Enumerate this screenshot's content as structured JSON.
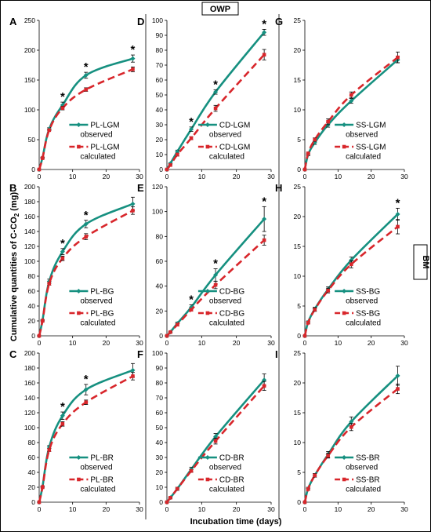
{
  "figure": {
    "top_tag": "OWP",
    "side_tag": "BM",
    "ylabel": "Cumulative quantities of C-CO",
    "ylabel_sub": "2",
    "ylabel_tail": " (mg)",
    "xlabel": "Incubation time (days)"
  },
  "colors": {
    "observed": "#169080",
    "calculated": "#d8262b"
  },
  "chart_data": [
    {
      "type": "line",
      "panel": "A",
      "ylim": [
        0,
        250
      ],
      "yticks": [
        0,
        50,
        100,
        150,
        200,
        250
      ],
      "xlim": [
        0,
        30
      ],
      "xticks": [
        0,
        10,
        20,
        30
      ],
      "legend": {
        "observed": [
          "PL-LGM",
          "observed"
        ],
        "calculated": [
          "PL-LGM",
          "calculated"
        ]
      },
      "series": [
        {
          "name": "PL-LGM observed",
          "x": [
            0,
            1,
            3,
            7,
            14,
            28
          ],
          "y": [
            0,
            20,
            68,
            108,
            158,
            186
          ],
          "err": [
            0,
            1,
            2,
            5,
            5,
            6
          ]
        },
        {
          "name": "PL-LGM calculated",
          "x": [
            0,
            1,
            3,
            7,
            14,
            28
          ],
          "y": [
            0,
            19,
            66,
            103,
            134,
            168
          ],
          "err": [
            0,
            1,
            1,
            3,
            3,
            4
          ]
        }
      ],
      "stars": [
        7,
        14,
        28
      ]
    },
    {
      "type": "line",
      "panel": "B",
      "ylim": [
        0,
        200
      ],
      "yticks": [
        0,
        20,
        40,
        60,
        80,
        100,
        120,
        140,
        160,
        180,
        200
      ],
      "xlim": [
        0,
        30
      ],
      "xticks": [
        0,
        10,
        20,
        30
      ],
      "legend": {
        "observed": [
          "PL-BG",
          "observed"
        ],
        "calculated": [
          "PL-BG",
          "calculated"
        ]
      },
      "series": [
        {
          "name": "PL-BG observed",
          "x": [
            0,
            1,
            3,
            7,
            14,
            28
          ],
          "y": [
            0,
            21,
            73,
            113,
            150,
            177
          ],
          "err": [
            0,
            1,
            3,
            4,
            5,
            9
          ]
        },
        {
          "name": "PL-BG calculated",
          "x": [
            0,
            1,
            3,
            7,
            14,
            28
          ],
          "y": [
            0,
            20,
            70,
            104,
            133,
            168
          ],
          "err": [
            0,
            1,
            2,
            3,
            4,
            5
          ]
        }
      ],
      "stars": [
        7,
        14
      ]
    },
    {
      "type": "line",
      "panel": "C",
      "ylim": [
        0,
        200
      ],
      "yticks": [
        0,
        20,
        40,
        60,
        80,
        100,
        120,
        140,
        160,
        180,
        200
      ],
      "xlim": [
        0,
        30
      ],
      "xticks": [
        0,
        10,
        20,
        30
      ],
      "legend": {
        "observed": [
          "PL-BR",
          "observed"
        ],
        "calculated": [
          "PL-BR",
          "calculated"
        ]
      },
      "series": [
        {
          "name": "PL-BR observed",
          "x": [
            0,
            1,
            3,
            7,
            14,
            28
          ],
          "y": [
            0,
            21,
            74,
            116,
            151,
            177
          ],
          "err": [
            0,
            1,
            2,
            5,
            7,
            9
          ]
        },
        {
          "name": "PL-BR calculated",
          "x": [
            0,
            1,
            3,
            7,
            14,
            28
          ],
          "y": [
            0,
            20,
            70,
            105,
            134,
            169
          ],
          "err": [
            0,
            1,
            2,
            3,
            3,
            5
          ]
        }
      ],
      "stars": [
        7,
        14
      ]
    },
    {
      "type": "line",
      "panel": "D",
      "ylim": [
        0,
        100
      ],
      "yticks": [
        0,
        10,
        20,
        30,
        40,
        50,
        60,
        70,
        80,
        90,
        100
      ],
      "xlim": [
        0,
        30
      ],
      "xticks": [
        0,
        10,
        20,
        30
      ],
      "legend": {
        "observed": [
          "CD-LGM",
          "observed"
        ],
        "calculated": [
          "CD-LGM",
          "calculated"
        ]
      },
      "series": [
        {
          "name": "CD-LGM observed",
          "x": [
            0,
            1,
            3,
            7,
            14,
            28
          ],
          "y": [
            0,
            4,
            12,
            27,
            52,
            92
          ],
          "err": [
            0,
            0.5,
            1,
            1.5,
            1.5,
            2
          ]
        },
        {
          "name": "CD-LGM calculated",
          "x": [
            0,
            1,
            3,
            7,
            14,
            28
          ],
          "y": [
            0,
            3,
            10,
            21,
            41,
            77
          ],
          "err": [
            0,
            0.5,
            1,
            1,
            2,
            3.5
          ]
        }
      ],
      "stars": [
        7,
        14,
        28
      ]
    },
    {
      "type": "line",
      "panel": "E",
      "ylim": [
        0,
        120
      ],
      "yticks": [
        0,
        20,
        40,
        60,
        80,
        100,
        120
      ],
      "xlim": [
        0,
        30
      ],
      "xticks": [
        0,
        10,
        20,
        30
      ],
      "legend": {
        "observed": [
          "CD-BG",
          "observed"
        ],
        "calculated": [
          "CD-BG",
          "calculated"
        ]
      },
      "series": [
        {
          "name": "CD-BG observed",
          "x": [
            0,
            1,
            3,
            7,
            14,
            28
          ],
          "y": [
            0,
            3,
            10,
            23,
            49,
            94
          ],
          "err": [
            0,
            0.5,
            1,
            2,
            5,
            10
          ]
        },
        {
          "name": "CD-BG calculated",
          "x": [
            0,
            1,
            3,
            7,
            14,
            28
          ],
          "y": [
            0,
            3,
            9,
            21,
            41,
            77
          ],
          "err": [
            0,
            0.5,
            1,
            1,
            3,
            4
          ]
        }
      ],
      "stars": [
        7,
        14,
        28
      ]
    },
    {
      "type": "line",
      "panel": "F",
      "ylim": [
        0,
        100
      ],
      "yticks": [
        0,
        10,
        20,
        30,
        40,
        50,
        60,
        70,
        80,
        90,
        100
      ],
      "xlim": [
        0,
        30
      ],
      "xticks": [
        0,
        10,
        20,
        30
      ],
      "legend": {
        "observed": [
          "CD-BR",
          "observed"
        ],
        "calculated": [
          "CD-BR",
          "calculated"
        ]
      },
      "series": [
        {
          "name": "CD-BR observed",
          "x": [
            0,
            1,
            3,
            7,
            14,
            28
          ],
          "y": [
            0,
            3,
            9,
            22,
            44,
            82
          ],
          "err": [
            0,
            0.5,
            1,
            1.5,
            2,
            4
          ]
        },
        {
          "name": "CD-BR calculated",
          "x": [
            0,
            1,
            3,
            7,
            14,
            28
          ],
          "y": [
            0,
            3,
            9,
            21,
            41,
            78
          ],
          "err": [
            0,
            0.5,
            1,
            1,
            2,
            3
          ]
        }
      ],
      "stars": []
    },
    {
      "type": "line",
      "panel": "G",
      "ylim": [
        0,
        25
      ],
      "yticks": [
        0,
        5,
        10,
        15,
        20,
        25
      ],
      "xlim": [
        0,
        30
      ],
      "xticks": [
        0,
        10,
        20,
        30
      ],
      "legend": {
        "observed": [
          "SS-LGM",
          "observed"
        ],
        "calculated": [
          "SS-LGM",
          "calculated"
        ]
      },
      "series": [
        {
          "name": "SS-LGM observed",
          "x": [
            0,
            1,
            3,
            7,
            14,
            28
          ],
          "y": [
            0,
            2.5,
            4.5,
            7.5,
            11.5,
            18.4
          ],
          "err": [
            0,
            0.2,
            0.3,
            0.4,
            0.4,
            0.5
          ]
        },
        {
          "name": "SS-LGM calculated",
          "x": [
            0,
            1,
            3,
            7,
            14,
            28
          ],
          "y": [
            0,
            2.7,
            5.0,
            8.0,
            12.5,
            18.8
          ],
          "err": [
            0,
            0.2,
            0.3,
            0.5,
            0.5,
            0.9
          ]
        }
      ],
      "stars": []
    },
    {
      "type": "line",
      "panel": "H",
      "ylim": [
        0,
        25
      ],
      "yticks": [
        0,
        5,
        10,
        15,
        20,
        25
      ],
      "xlim": [
        0,
        30
      ],
      "xticks": [
        0,
        10,
        20,
        30
      ],
      "legend": {
        "observed": [
          "SS-BG",
          "observed"
        ],
        "calculated": [
          "SS-BG",
          "calculated"
        ]
      },
      "series": [
        {
          "name": "SS-BG observed",
          "x": [
            0,
            1,
            3,
            7,
            14,
            28
          ],
          "y": [
            0,
            2.3,
            4.5,
            7.8,
            12.7,
            20.4
          ],
          "err": [
            0,
            0.2,
            0.3,
            0.4,
            0.5,
            1.0
          ]
        },
        {
          "name": "SS-BG calculated",
          "x": [
            0,
            1,
            3,
            7,
            14,
            28
          ],
          "y": [
            0,
            2.2,
            4.4,
            7.6,
            12.0,
            18.3
          ],
          "err": [
            0,
            0.2,
            0.3,
            0.4,
            0.6,
            1.2
          ]
        }
      ],
      "stars": [
        28
      ]
    },
    {
      "type": "line",
      "panel": "I",
      "ylim": [
        0,
        25
      ],
      "yticks": [
        0,
        5,
        10,
        15,
        20,
        25
      ],
      "xlim": [
        0,
        30
      ],
      "xticks": [
        0,
        10,
        20,
        30
      ],
      "legend": {
        "observed": [
          "SS-BR",
          "observed"
        ],
        "calculated": [
          "SS-BR",
          "calculated"
        ]
      },
      "series": [
        {
          "name": "SS-BR observed",
          "x": [
            0,
            1,
            3,
            7,
            14,
            28
          ],
          "y": [
            0,
            2.3,
            4.5,
            8.0,
            13.5,
            21.2
          ],
          "err": [
            0,
            0.2,
            0.3,
            0.5,
            0.8,
            1.6
          ]
        },
        {
          "name": "SS-BR calculated",
          "x": [
            0,
            1,
            3,
            7,
            14,
            28
          ],
          "y": [
            0,
            2.2,
            4.5,
            7.8,
            12.6,
            19.0
          ],
          "err": [
            0,
            0.2,
            0.3,
            0.4,
            0.6,
            0.8
          ]
        }
      ],
      "stars": []
    }
  ]
}
